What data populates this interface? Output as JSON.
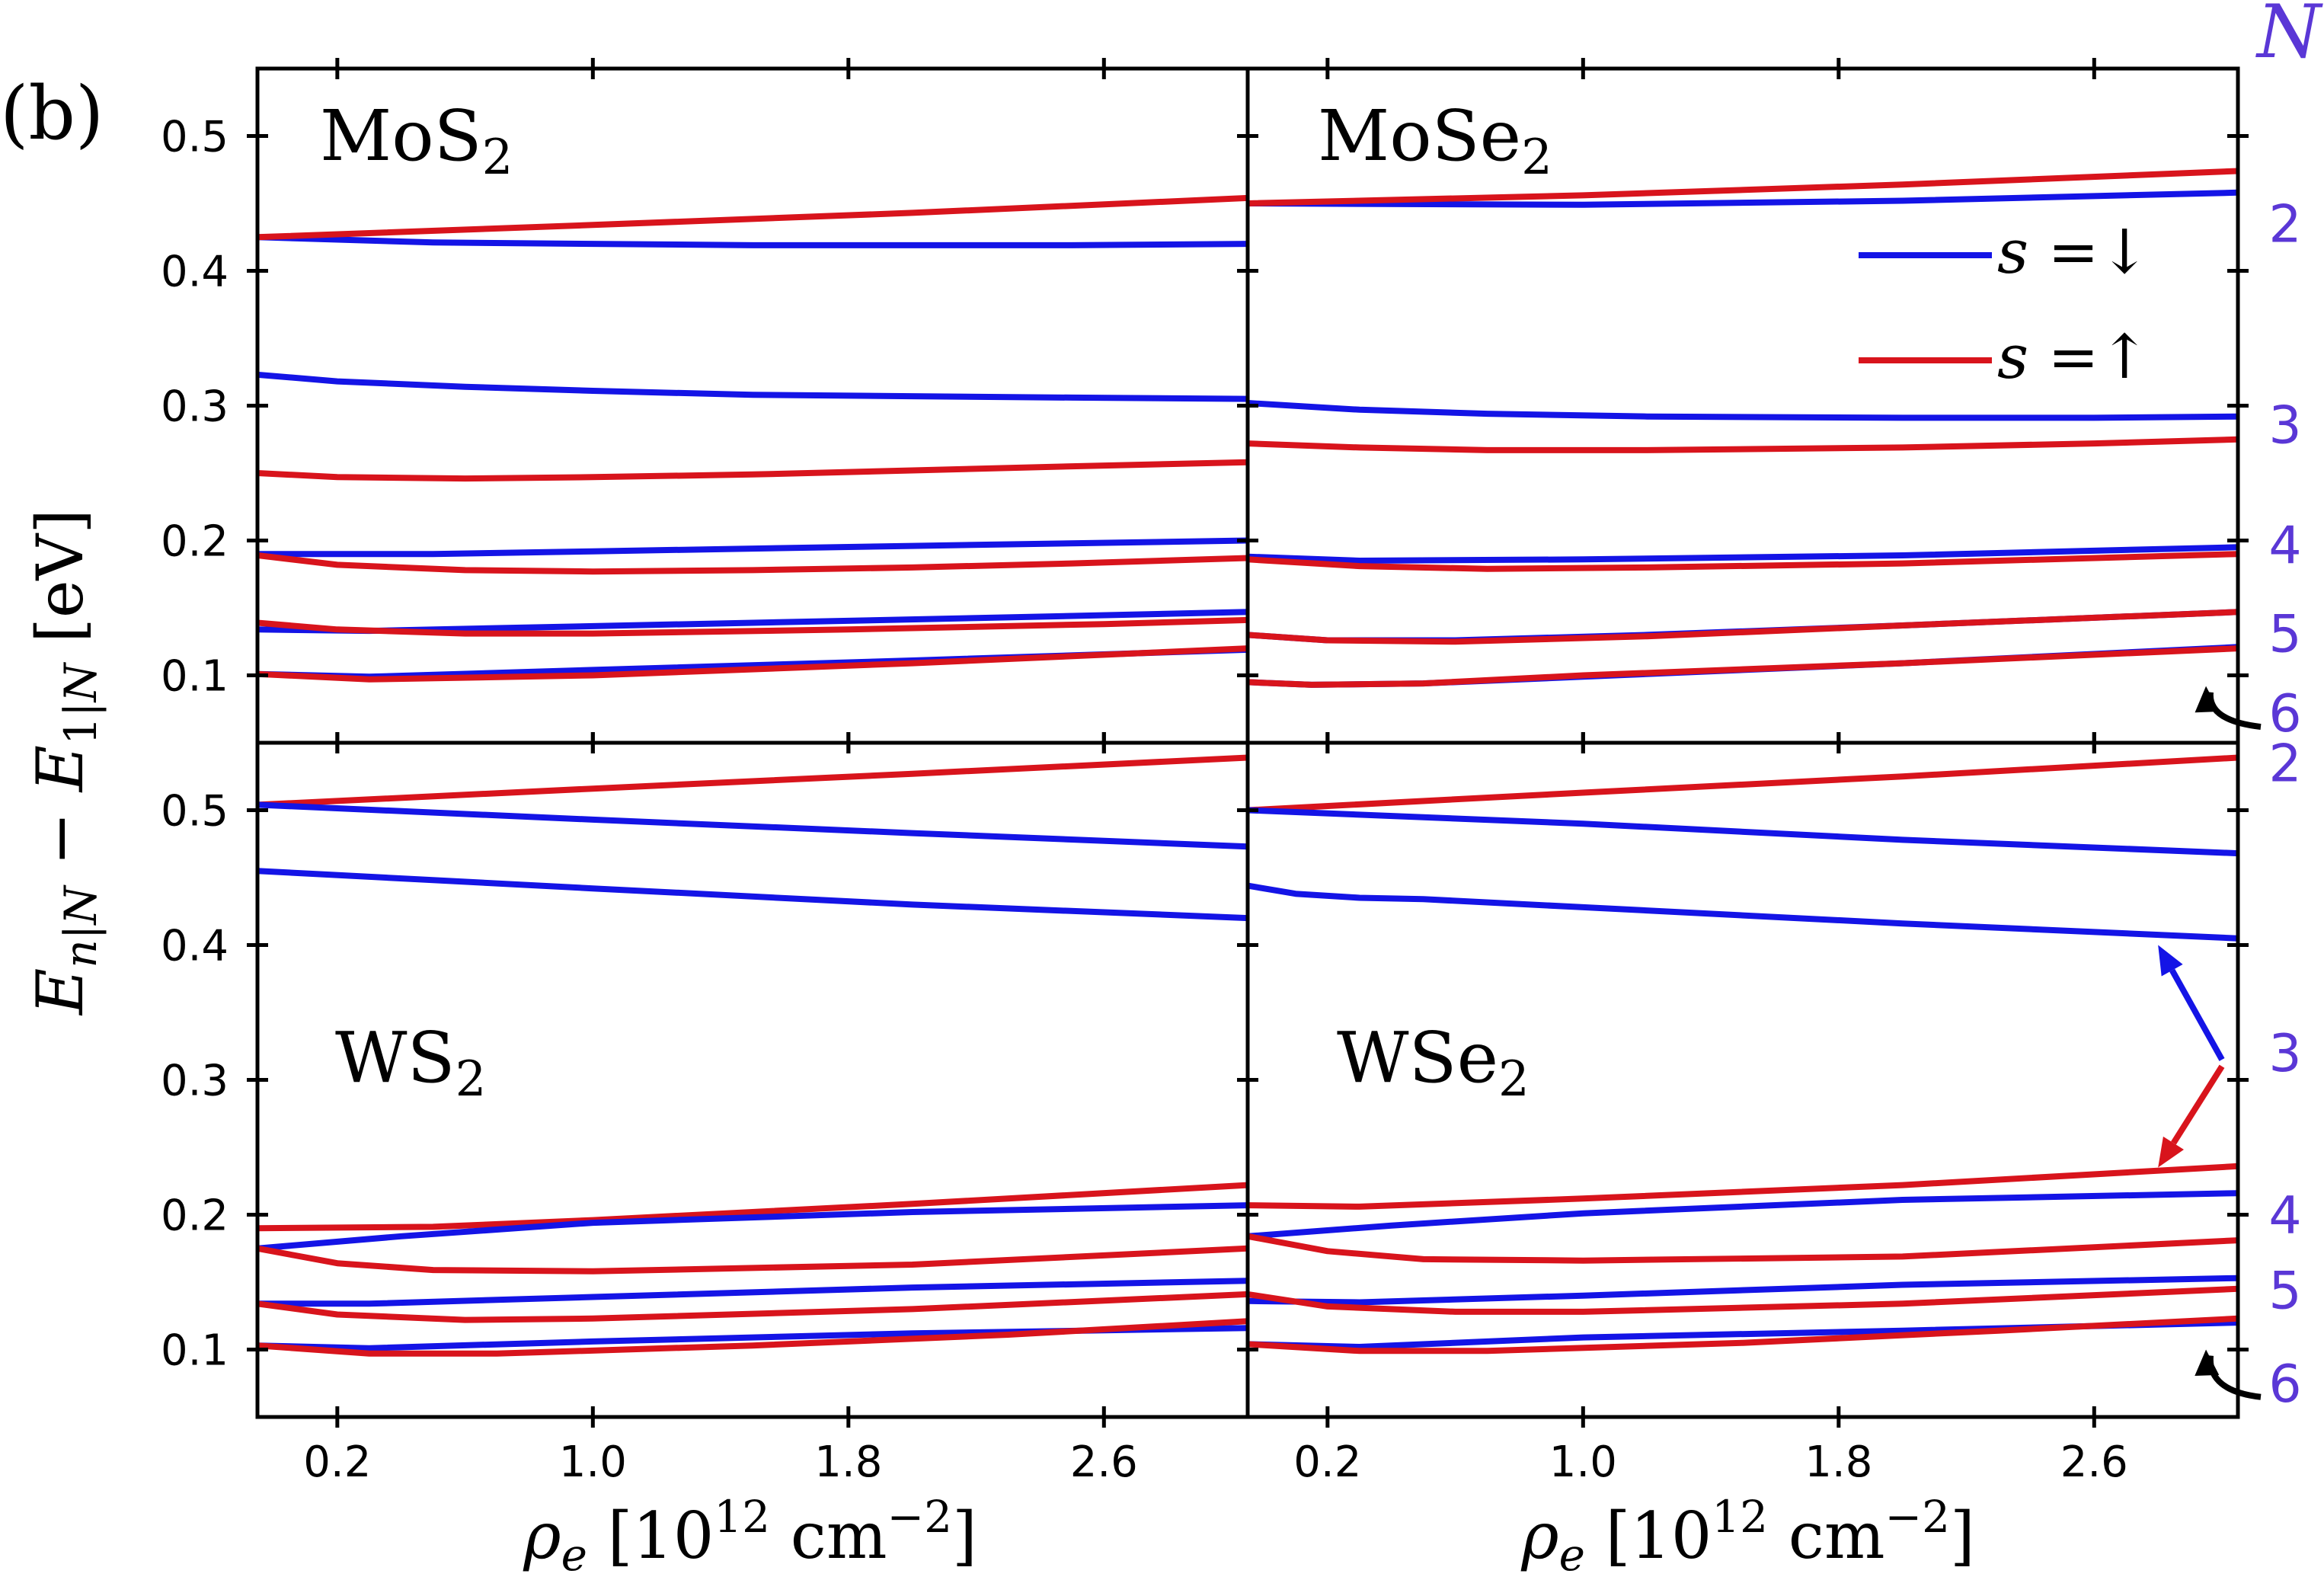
{
  "figure": {
    "panel_label": "(b)",
    "y_label": "E_{n|N} − E_{1|N} [eV]",
    "x_label": "ρ_e [10^12 cm^−2]",
    "N_header": "N",
    "colors": {
      "down": "#1414e6",
      "up": "#d8141c",
      "N_labels": "#5a37d6",
      "frame": "#000000"
    },
    "legend": [
      {
        "label": "s =↓",
        "color": "#1414e6"
      },
      {
        "label": "s =↑",
        "color": "#d8141c"
      }
    ]
  },
  "chart_data": [
    {
      "type": "line",
      "title": "MoS2",
      "title_base": "MoS",
      "title_sub": "2",
      "xlim": [
        -0.05,
        3.05
      ],
      "ylim": [
        0.05,
        0.55
      ],
      "xticks": [
        0.2,
        1.0,
        1.8,
        2.6
      ],
      "xtick_labels": [
        "0.2",
        "1.0",
        "1.8",
        "2.6"
      ],
      "yticks": [
        0.1,
        0.2,
        0.3,
        0.4,
        0.5
      ],
      "ytick_labels": [
        "0.1",
        "0.2",
        "0.3",
        "0.4",
        "0.5"
      ],
      "N_labels": [
        {
          "text": "2",
          "y": 0.435
        },
        {
          "text": "3",
          "y": 0.286
        },
        {
          "text": "4",
          "y": 0.197
        },
        {
          "text": "5",
          "y": 0.131
        },
        {
          "text": "6",
          "y": 0.072
        }
      ],
      "series": [
        {
          "name": "s=↓ N=2",
          "spin": "down",
          "x": [
            -0.05,
            0.5,
            1.5,
            2.5,
            3.05
          ],
          "y": [
            0.425,
            0.421,
            0.419,
            0.419,
            0.42
          ]
        },
        {
          "name": "s=↑ N=2",
          "spin": "up",
          "x": [
            -0.05,
            1.0,
            2.0,
            3.05
          ],
          "y": [
            0.425,
            0.434,
            0.443,
            0.454
          ]
        },
        {
          "name": "s=↓ N=3",
          "spin": "down",
          "x": [
            -0.05,
            0.2,
            0.6,
            1.0,
            1.5,
            2.0,
            2.5,
            3.05
          ],
          "y": [
            0.323,
            0.318,
            0.314,
            0.311,
            0.308,
            0.307,
            0.306,
            0.305
          ]
        },
        {
          "name": "s=↑ N=3",
          "spin": "up",
          "x": [
            -0.05,
            0.2,
            0.6,
            1.0,
            1.5,
            2.0,
            2.5,
            3.05
          ],
          "y": [
            0.25,
            0.247,
            0.246,
            0.247,
            0.249,
            0.252,
            0.255,
            0.258
          ]
        },
        {
          "name": "s=↓ N=4",
          "spin": "down",
          "x": [
            -0.05,
            0.5,
            1.0,
            2.0,
            3.05
          ],
          "y": [
            0.19,
            0.19,
            0.192,
            0.196,
            0.2
          ]
        },
        {
          "name": "s=↑ N=4",
          "spin": "up",
          "x": [
            -0.05,
            0.2,
            0.6,
            1.0,
            1.5,
            2.0,
            2.5,
            3.05
          ],
          "y": [
            0.189,
            0.182,
            0.178,
            0.177,
            0.178,
            0.18,
            0.183,
            0.187
          ]
        },
        {
          "name": "s=↓ N=5",
          "spin": "down",
          "x": [
            -0.05,
            0.3,
            0.7,
            1.5,
            2.3,
            3.05
          ],
          "y": [
            0.134,
            0.133,
            0.135,
            0.139,
            0.143,
            0.147
          ]
        },
        {
          "name": "s=↑ N=5",
          "spin": "up",
          "x": [
            -0.05,
            0.2,
            0.6,
            1.0,
            1.8,
            2.6,
            3.05
          ],
          "y": [
            0.139,
            0.134,
            0.131,
            0.131,
            0.134,
            0.138,
            0.141
          ]
        },
        {
          "name": "s=↓ N=6",
          "spin": "down",
          "x": [
            -0.05,
            0.3,
            1.0,
            2.0,
            3.05
          ],
          "y": [
            0.101,
            0.099,
            0.104,
            0.111,
            0.119
          ]
        },
        {
          "name": "s=↑ N=6",
          "spin": "up",
          "x": [
            -0.05,
            0.3,
            1.0,
            2.0,
            3.05
          ],
          "y": [
            0.101,
            0.097,
            0.1,
            0.109,
            0.12
          ]
        }
      ]
    },
    {
      "type": "line",
      "title": "MoSe2",
      "title_base": "MoSe",
      "title_sub": "2",
      "xlim": [
        -0.05,
        3.05
      ],
      "ylim": [
        0.05,
        0.55
      ],
      "xticks": [
        0.2,
        1.0,
        1.8,
        2.6
      ],
      "xtick_labels": [
        "0.2",
        "1.0",
        "1.8",
        "2.6"
      ],
      "yticks": [
        0.1,
        0.2,
        0.3,
        0.4,
        0.5
      ],
      "ytick_labels": [],
      "arrows": [
        {
          "color": "black",
          "from": [
            3.05,
            0.072
          ],
          "to": [
            2.95,
            0.092
          ]
        }
      ],
      "series": [
        {
          "name": "s=↓ N=2",
          "spin": "down",
          "x": [
            -0.05,
            1.0,
            2.0,
            3.05
          ],
          "y": [
            0.45,
            0.449,
            0.452,
            0.458
          ]
        },
        {
          "name": "s=↑ N=2",
          "spin": "up",
          "x": [
            -0.05,
            1.0,
            2.0,
            3.05
          ],
          "y": [
            0.45,
            0.456,
            0.464,
            0.474
          ]
        },
        {
          "name": "s=↓ N=3",
          "spin": "down",
          "x": [
            -0.05,
            0.3,
            0.7,
            1.2,
            2.0,
            2.6,
            3.05
          ],
          "y": [
            0.302,
            0.297,
            0.294,
            0.292,
            0.291,
            0.291,
            0.292
          ]
        },
        {
          "name": "s=↑ N=3",
          "spin": "up",
          "x": [
            -0.05,
            0.3,
            0.7,
            1.2,
            2.0,
            2.6,
            3.05
          ],
          "y": [
            0.272,
            0.269,
            0.267,
            0.267,
            0.269,
            0.272,
            0.275
          ]
        },
        {
          "name": "s=↓ N=4",
          "spin": "down",
          "x": [
            -0.05,
            0.3,
            1.0,
            2.0,
            3.05
          ],
          "y": [
            0.188,
            0.185,
            0.186,
            0.189,
            0.195
          ]
        },
        {
          "name": "s=↑ N=4",
          "spin": "up",
          "x": [
            -0.05,
            0.3,
            0.7,
            1.2,
            2.0,
            3.05
          ],
          "y": [
            0.186,
            0.181,
            0.179,
            0.18,
            0.183,
            0.19
          ]
        },
        {
          "name": "s=↓ N=5",
          "spin": "down",
          "x": [
            -0.05,
            0.2,
            0.6,
            1.2,
            2.0,
            3.05
          ],
          "y": [
            0.13,
            0.126,
            0.126,
            0.13,
            0.137,
            0.147
          ]
        },
        {
          "name": "s=↑ N=5",
          "spin": "up",
          "x": [
            -0.05,
            0.2,
            0.6,
            1.2,
            2.0,
            3.05
          ],
          "y": [
            0.13,
            0.126,
            0.125,
            0.129,
            0.137,
            0.147
          ]
        },
        {
          "name": "s=↓ N=6",
          "spin": "down",
          "x": [
            -0.05,
            0.15,
            0.5,
            1.0,
            2.0,
            3.05
          ],
          "y": [
            0.095,
            0.093,
            0.094,
            0.099,
            0.109,
            0.121
          ]
        },
        {
          "name": "s=↑ N=6",
          "spin": "up",
          "x": [
            -0.05,
            0.15,
            0.5,
            1.0,
            2.0,
            3.05
          ],
          "y": [
            0.095,
            0.093,
            0.094,
            0.1,
            0.109,
            0.12
          ]
        }
      ]
    },
    {
      "type": "line",
      "title": "WS2",
      "title_base": "WS",
      "title_sub": "2",
      "xlim": [
        -0.05,
        3.05
      ],
      "ylim": [
        0.05,
        0.55
      ],
      "xticks": [
        0.2,
        1.0,
        1.8,
        2.6
      ],
      "xtick_labels": [
        "0.2",
        "1.0",
        "1.8",
        "2.6"
      ],
      "yticks": [
        0.1,
        0.2,
        0.3,
        0.4,
        0.5
      ],
      "ytick_labels": [
        "0.1",
        "0.2",
        "0.3",
        "0.4",
        "0.5"
      ],
      "series": [
        {
          "name": "s=↑ N=2",
          "spin": "up",
          "x": [
            -0.05,
            1.0,
            2.0,
            3.05
          ],
          "y": [
            0.504,
            0.516,
            0.527,
            0.539
          ]
        },
        {
          "name": "s=↓ N=2",
          "spin": "down",
          "x": [
            -0.05,
            1.0,
            2.0,
            3.05
          ],
          "y": [
            0.504,
            0.493,
            0.483,
            0.473
          ]
        },
        {
          "name": "s=↓ N=3",
          "spin": "down",
          "x": [
            -0.05,
            1.0,
            2.0,
            3.05
          ],
          "y": [
            0.455,
            0.442,
            0.43,
            0.42
          ]
        },
        {
          "name": "s=↑ N=4",
          "spin": "up",
          "x": [
            -0.05,
            0.5,
            1.0,
            2.0,
            3.05
          ],
          "y": [
            0.19,
            0.191,
            0.196,
            0.208,
            0.222
          ]
        },
        {
          "name": "s=↓ N=4",
          "spin": "down",
          "x": [
            -0.05,
            0.4,
            1.0,
            2.0,
            3.05
          ],
          "y": [
            0.175,
            0.184,
            0.194,
            0.202,
            0.207
          ]
        },
        {
          "name": "s=↑ N=4b",
          "spin": "up",
          "x": [
            -0.05,
            0.2,
            0.5,
            1.0,
            2.0,
            3.05
          ],
          "y": [
            0.175,
            0.164,
            0.159,
            0.158,
            0.163,
            0.175
          ]
        },
        {
          "name": "s=↓ N=5",
          "spin": "down",
          "x": [
            -0.05,
            0.3,
            1.0,
            2.0,
            3.05
          ],
          "y": [
            0.134,
            0.134,
            0.139,
            0.146,
            0.151
          ]
        },
        {
          "name": "s=↑ N=5",
          "spin": "up",
          "x": [
            -0.05,
            0.2,
            0.6,
            1.0,
            2.0,
            3.05
          ],
          "y": [
            0.134,
            0.126,
            0.122,
            0.123,
            0.13,
            0.141
          ]
        },
        {
          "name": "s=↓ N=6",
          "spin": "down",
          "x": [
            -0.05,
            0.3,
            1.0,
            2.0,
            3.05
          ],
          "y": [
            0.103,
            0.101,
            0.106,
            0.112,
            0.116
          ]
        },
        {
          "name": "s=↑ N=6",
          "spin": "up",
          "x": [
            -0.05,
            0.3,
            0.7,
            1.5,
            2.3,
            3.05
          ],
          "y": [
            0.103,
            0.097,
            0.097,
            0.103,
            0.111,
            0.121
          ]
        }
      ]
    },
    {
      "type": "line",
      "title": "WSe2",
      "title_base": "WSe",
      "title_sub": "2",
      "xlim": [
        -0.05,
        3.05
      ],
      "ylim": [
        0.05,
        0.55
      ],
      "xticks": [
        0.2,
        1.0,
        1.8,
        2.6
      ],
      "xtick_labels": [
        "0.2",
        "1.0",
        "1.8",
        "2.6"
      ],
      "yticks": [
        0.1,
        0.2,
        0.3,
        0.4,
        0.5
      ],
      "ytick_labels": [],
      "N_labels": [
        {
          "text": "2",
          "y": 0.535
        },
        {
          "text": "3",
          "y": 0.32
        },
        {
          "text": "4",
          "y": 0.2
        },
        {
          "text": "5",
          "y": 0.144
        },
        {
          "text": "6",
          "y": 0.075
        }
      ],
      "arrows": [
        {
          "color": "blue",
          "from": [
            3.0,
            0.315
          ],
          "to": [
            2.8,
            0.4
          ]
        },
        {
          "color": "red",
          "from": [
            3.0,
            0.31
          ],
          "to": [
            2.8,
            0.235
          ]
        },
        {
          "color": "black",
          "from": [
            3.05,
            0.075
          ],
          "to": [
            2.95,
            0.1
          ]
        }
      ],
      "series": [
        {
          "name": "s=↑ N=2",
          "spin": "up",
          "x": [
            -0.05,
            1.0,
            2.0,
            3.05
          ],
          "y": [
            0.5,
            0.513,
            0.525,
            0.539
          ]
        },
        {
          "name": "s=↓ N=2",
          "spin": "down",
          "x": [
            -0.05,
            1.0,
            2.0,
            3.05
          ],
          "y": [
            0.5,
            0.49,
            0.478,
            0.468
          ]
        },
        {
          "name": "s=↓ N=3",
          "spin": "down",
          "x": [
            -0.05,
            0.1,
            0.3,
            0.5,
            1.0,
            2.0,
            3.05
          ],
          "y": [
            0.444,
            0.438,
            0.435,
            0.434,
            0.428,
            0.416,
            0.405
          ]
        },
        {
          "name": "s=↑ N=4",
          "spin": "up",
          "x": [
            -0.05,
            0.3,
            1.0,
            2.0,
            3.05
          ],
          "y": [
            0.207,
            0.206,
            0.212,
            0.222,
            0.236
          ]
        },
        {
          "name": "s=↓ N=4",
          "spin": "down",
          "x": [
            -0.05,
            0.4,
            1.0,
            2.0,
            3.05
          ],
          "y": [
            0.184,
            0.192,
            0.201,
            0.211,
            0.216
          ]
        },
        {
          "name": "s=↑ N=4b",
          "spin": "up",
          "x": [
            -0.05,
            0.2,
            0.5,
            1.0,
            2.0,
            3.05
          ],
          "y": [
            0.184,
            0.173,
            0.167,
            0.166,
            0.169,
            0.181
          ]
        },
        {
          "name": "s=↓ N=5",
          "spin": "down",
          "x": [
            -0.05,
            0.3,
            1.0,
            2.0,
            3.05
          ],
          "y": [
            0.136,
            0.135,
            0.14,
            0.148,
            0.153
          ]
        },
        {
          "name": "s=↑ N=5",
          "spin": "up",
          "x": [
            -0.05,
            0.2,
            0.6,
            1.0,
            2.0,
            3.05
          ],
          "y": [
            0.141,
            0.132,
            0.128,
            0.128,
            0.134,
            0.145
          ]
        },
        {
          "name": "s=↓ N=6",
          "spin": "down",
          "x": [
            -0.05,
            0.3,
            1.0,
            2.0,
            3.05
          ],
          "y": [
            0.104,
            0.102,
            0.109,
            0.114,
            0.12
          ]
        },
        {
          "name": "s=↑ N=6",
          "spin": "up",
          "x": [
            -0.05,
            0.3,
            0.7,
            1.5,
            2.3,
            3.05
          ],
          "y": [
            0.104,
            0.099,
            0.099,
            0.105,
            0.114,
            0.123
          ]
        }
      ]
    }
  ]
}
